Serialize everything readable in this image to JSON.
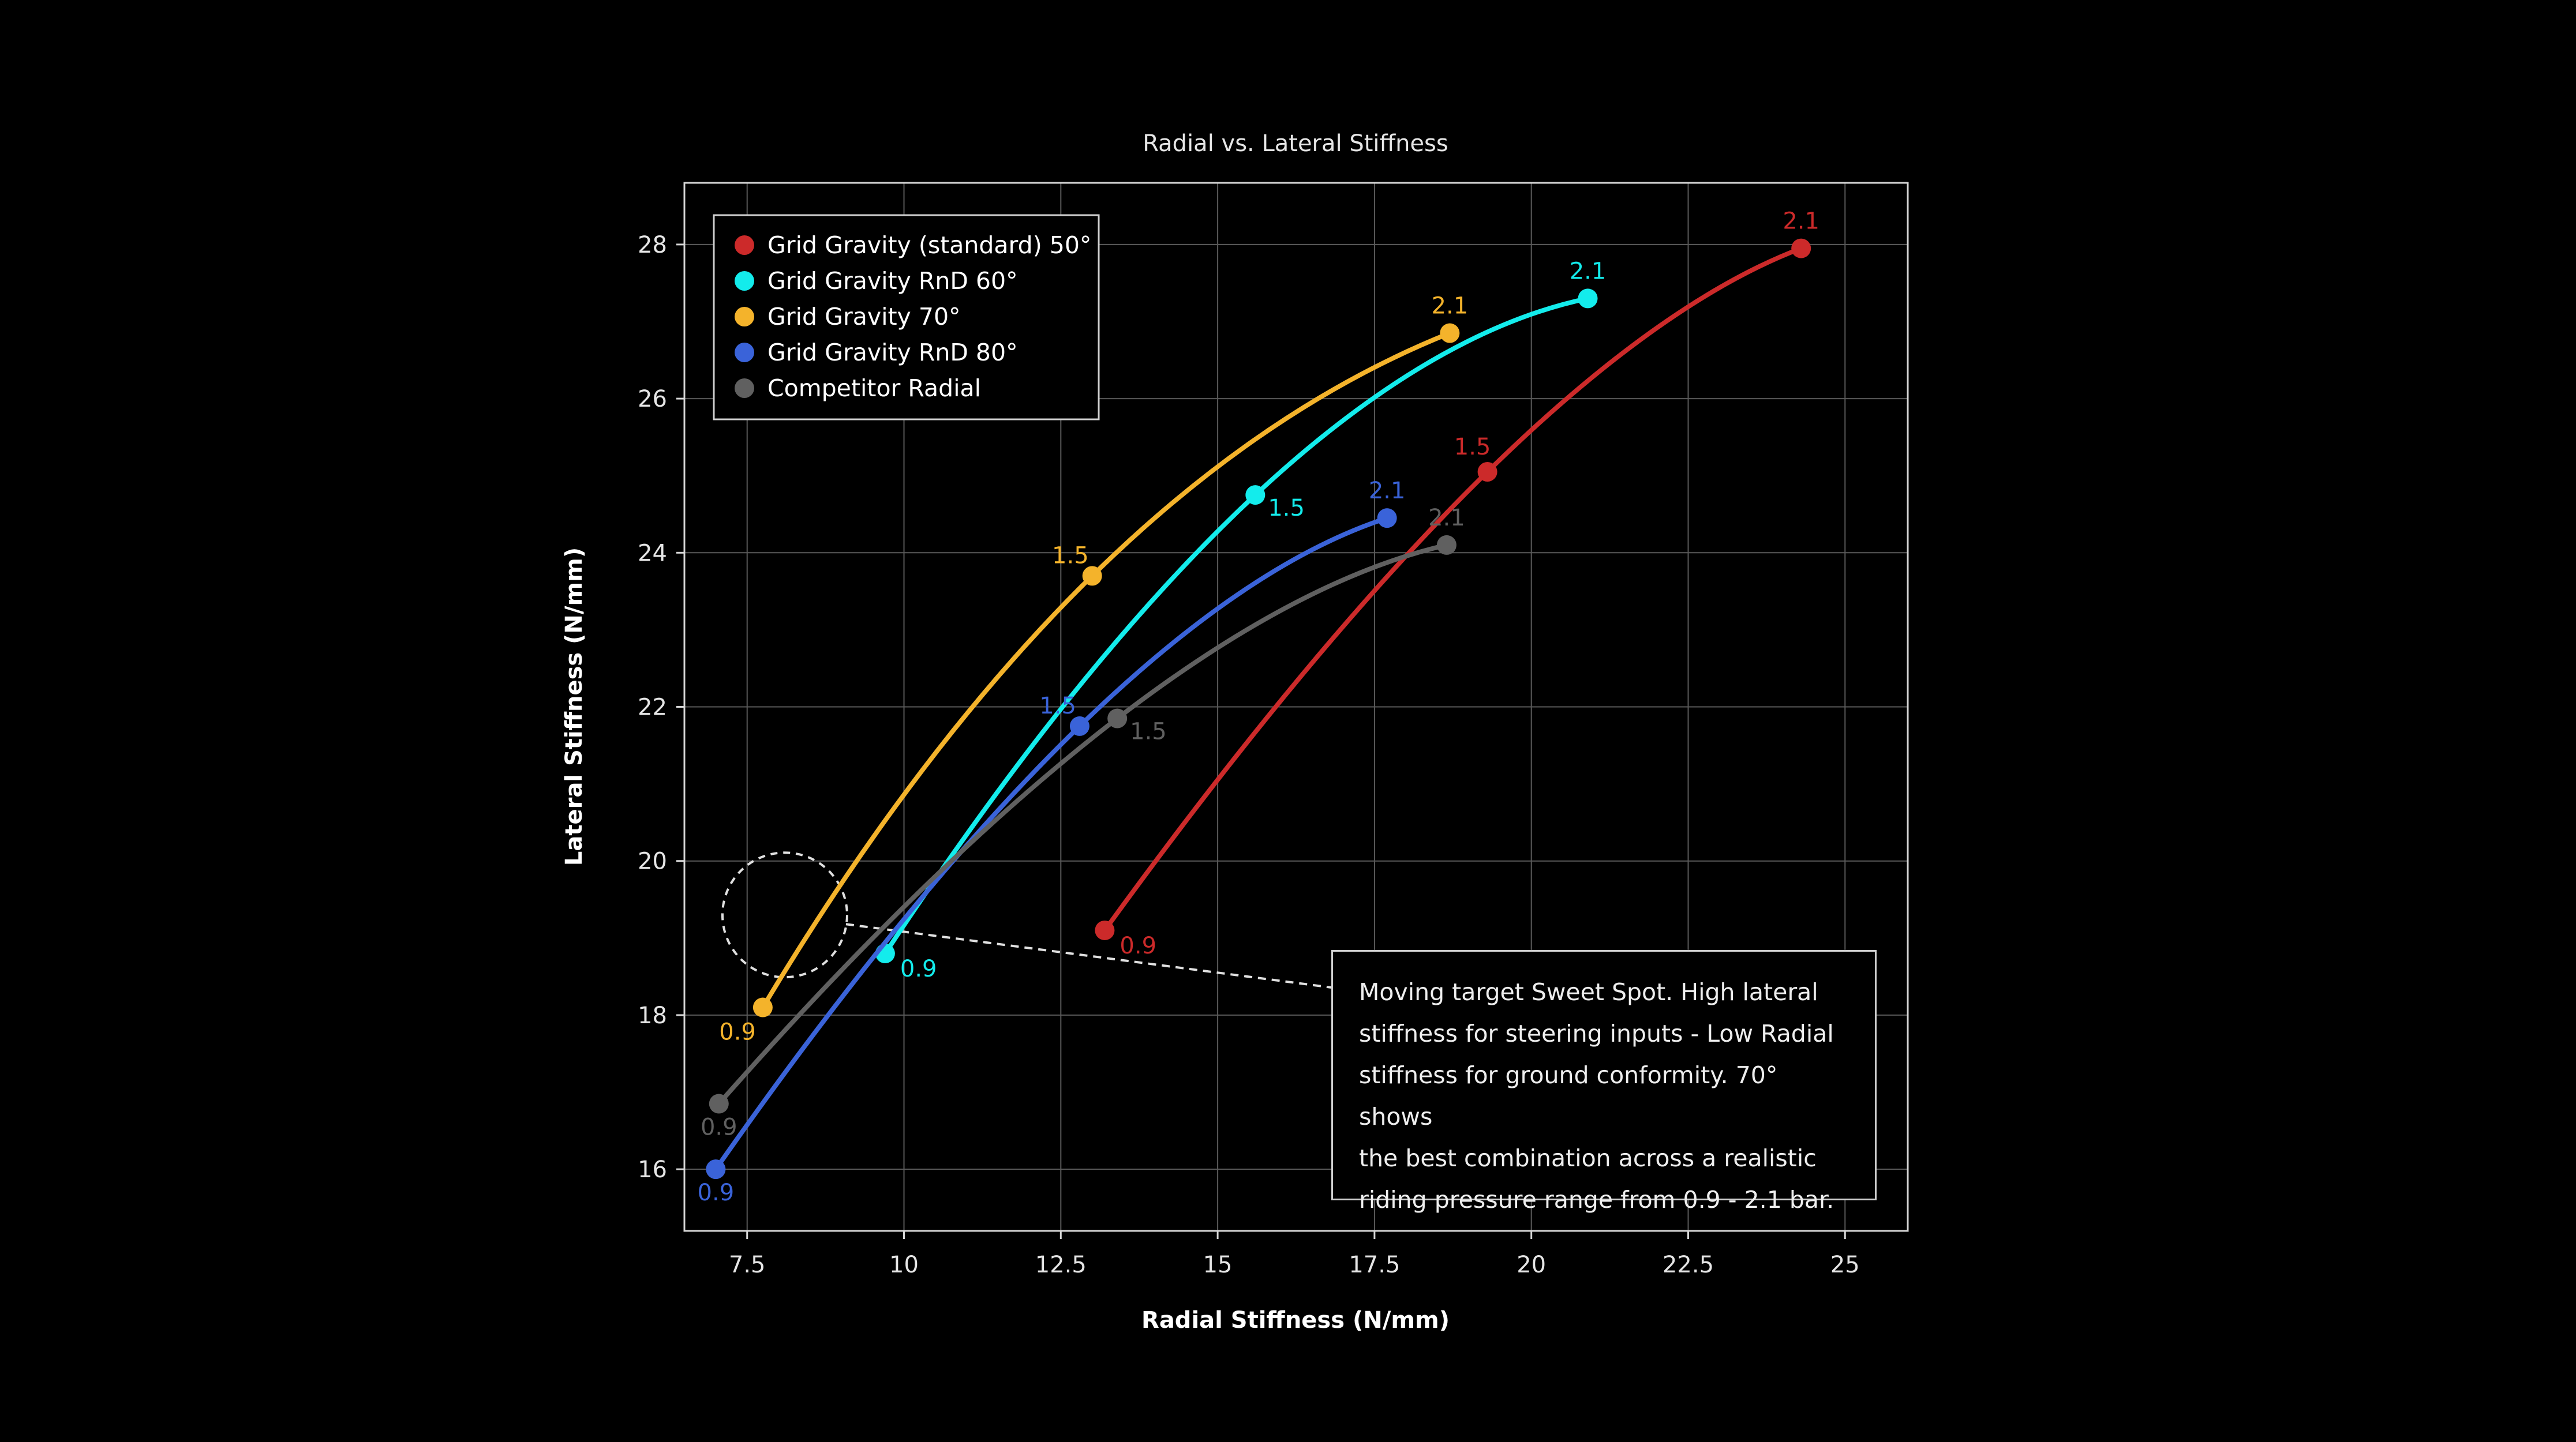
{
  "chart_data": {
    "type": "line",
    "title": "Radial vs. Lateral Stiffness",
    "xlabel": "Radial Stiffness (N/mm)",
    "ylabel": "Lateral Stiffness (N/mm)",
    "xlim": [
      6.5,
      26
    ],
    "ylim": [
      15.2,
      28.8
    ],
    "xticks": [
      7.5,
      10,
      12.5,
      15,
      17.5,
      20,
      22.5,
      25
    ],
    "xtick_labels": [
      "7.5",
      "10",
      "12.5",
      "15",
      "17.5",
      "20",
      "22.5",
      "25"
    ],
    "yticks": [
      16,
      18,
      20,
      22,
      24,
      26,
      28
    ],
    "ytick_labels": [
      "16",
      "18",
      "20",
      "22",
      "24",
      "26",
      "28"
    ],
    "grid": true,
    "legend_position": "top-left",
    "series": [
      {
        "name": "Grid Gravity (standard) 50°",
        "color": "#cc2a2a",
        "points": [
          {
            "x": 13.2,
            "y": 19.1,
            "label": "0.9"
          },
          {
            "x": 19.3,
            "y": 25.05,
            "label": "1.5"
          },
          {
            "x": 24.3,
            "y": 27.95,
            "label": "2.1"
          }
        ]
      },
      {
        "name": "Grid Gravity RnD 60°",
        "color": "#13ecec",
        "points": [
          {
            "x": 9.7,
            "y": 18.8,
            "label": "0.9"
          },
          {
            "x": 15.6,
            "y": 24.75,
            "label": "1.5"
          },
          {
            "x": 20.9,
            "y": 27.3,
            "label": "2.1"
          }
        ]
      },
      {
        "name": "Grid Gravity 70°",
        "color": "#f4b32b",
        "points": [
          {
            "x": 7.75,
            "y": 18.1,
            "label": "0.9"
          },
          {
            "x": 13.0,
            "y": 23.7,
            "label": "1.5"
          },
          {
            "x": 18.7,
            "y": 26.85,
            "label": "2.1"
          }
        ]
      },
      {
        "name": "Grid Gravity RnD 80°",
        "color": "#3a63d9",
        "points": [
          {
            "x": 7.0,
            "y": 16.0,
            "label": "0.9"
          },
          {
            "x": 12.8,
            "y": 21.75,
            "label": "1.5"
          },
          {
            "x": 17.7,
            "y": 24.45,
            "label": "2.1"
          }
        ]
      },
      {
        "name": "Competitor Radial",
        "color": "#606060",
        "points": [
          {
            "x": 7.05,
            "y": 16.85,
            "label": "0.9"
          },
          {
            "x": 13.4,
            "y": 21.85,
            "label": "1.5"
          },
          {
            "x": 18.65,
            "y": 24.1,
            "label": "2.1"
          }
        ]
      }
    ],
    "annotation": {
      "text": "Moving target Sweet Spot. High lateral stiffness for steering inputs - Low Radial stiffness for ground conformity. 70° shows the best combination across a realistic riding pressure range from 0.9 - 2.1 bar.",
      "lines": [
        "Moving target Sweet Spot. High lateral",
        "stiffness for steering inputs - Low Radial",
        "stiffness for ground conformity. 70° shows",
        "the best combination across a realistic",
        "riding pressure range from 0.9 - 2.1 bar."
      ],
      "target": {
        "x": 8.1,
        "y": 19.3
      }
    }
  }
}
